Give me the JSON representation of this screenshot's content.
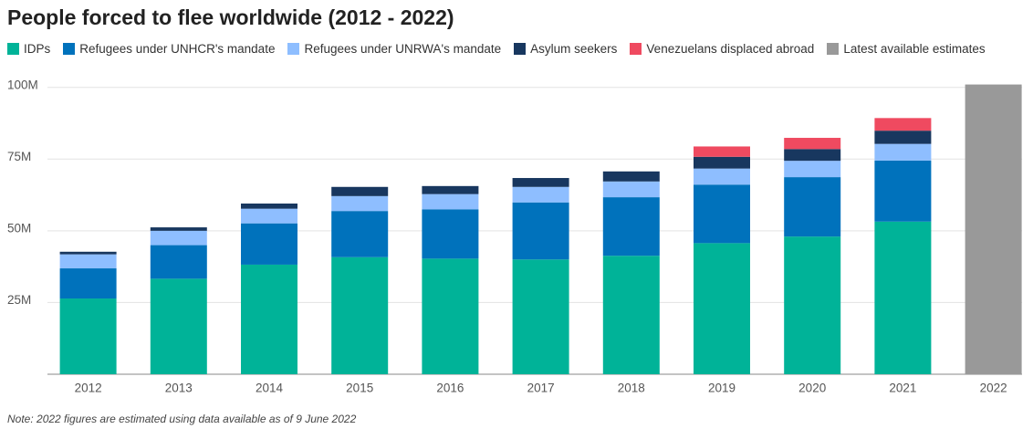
{
  "chart_data": {
    "type": "stacked_bar",
    "title": "People forced to flee worldwide (2012 - 2022)",
    "note": "Note: 2022 figures are estimated using data available as of 9 June 2022",
    "categories": [
      "2012",
      "2013",
      "2014",
      "2015",
      "2016",
      "2017",
      "2018",
      "2019",
      "2020",
      "2021",
      "2022"
    ],
    "series": [
      {
        "name": "IDPs",
        "color": "#00b398",
        "values": [
          26.4,
          33.3,
          38.2,
          40.8,
          40.3,
          40.0,
          41.3,
          45.7,
          48.0,
          53.2,
          null
        ]
      },
      {
        "name": "Refugees under UNHCR's mandate",
        "color": "#0072bc",
        "values": [
          10.5,
          11.7,
          14.4,
          16.1,
          17.2,
          19.9,
          20.4,
          20.4,
          20.7,
          21.3,
          null
        ]
      },
      {
        "name": "Refugees under UNRWA's mandate",
        "color": "#8ebeff",
        "values": [
          4.9,
          5.0,
          5.1,
          5.2,
          5.3,
          5.4,
          5.5,
          5.6,
          5.7,
          5.8,
          null
        ]
      },
      {
        "name": "Asylum seekers",
        "color": "#18375f",
        "values": [
          0.9,
          1.2,
          1.8,
          3.2,
          2.8,
          3.1,
          3.5,
          4.1,
          4.1,
          4.6,
          null
        ]
      },
      {
        "name": "Venezuelans displaced abroad",
        "color": "#ef4a60",
        "values": [
          null,
          null,
          null,
          null,
          null,
          null,
          null,
          3.6,
          3.9,
          4.4,
          null
        ]
      },
      {
        "name": "Latest available estimates",
        "color": "#999999",
        "values": [
          null,
          null,
          null,
          null,
          null,
          null,
          null,
          null,
          null,
          null,
          101
        ]
      }
    ],
    "ylim": [
      0,
      105
    ],
    "yticks": [
      {
        "value": 25,
        "label": "25M"
      },
      {
        "value": 50,
        "label": "50M"
      },
      {
        "value": 75,
        "label": "75M"
      },
      {
        "value": 100,
        "label": "100M"
      }
    ],
    "grid": true
  }
}
